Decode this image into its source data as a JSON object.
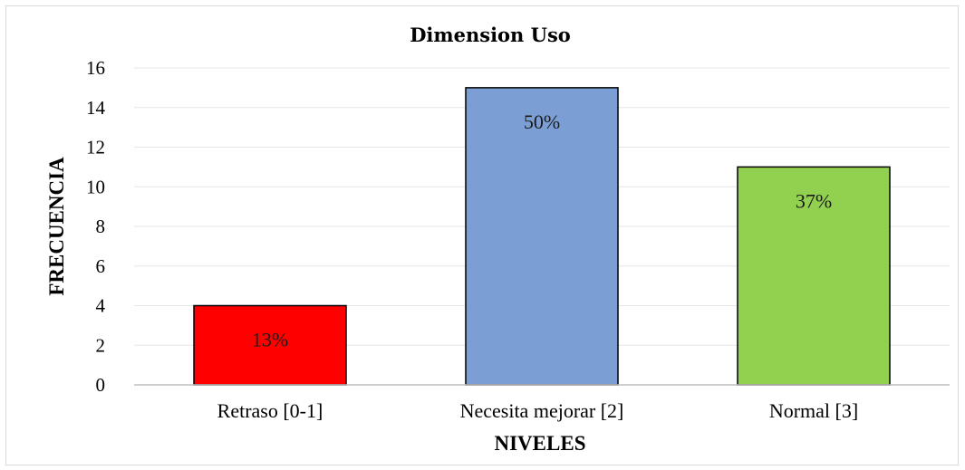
{
  "chart_data": {
    "type": "bar",
    "title": "Dimension Uso",
    "xlabel": "NIVELES",
    "ylabel": "FRECUENCIA",
    "categories": [
      "Retraso [0-1]",
      "Necesita mejorar [2]",
      "Normal [3]"
    ],
    "values": [
      4,
      15,
      11
    ],
    "data_labels": [
      "13%",
      "50%",
      "37%"
    ],
    "colors": [
      "#ff0000",
      "#7b9fd4",
      "#92d050"
    ],
    "ylim": [
      0,
      16
    ],
    "yticks": [
      "0",
      "2",
      "4",
      "6",
      "8",
      "10",
      "12",
      "14",
      "16"
    ],
    "grid": true,
    "legend": "none"
  }
}
